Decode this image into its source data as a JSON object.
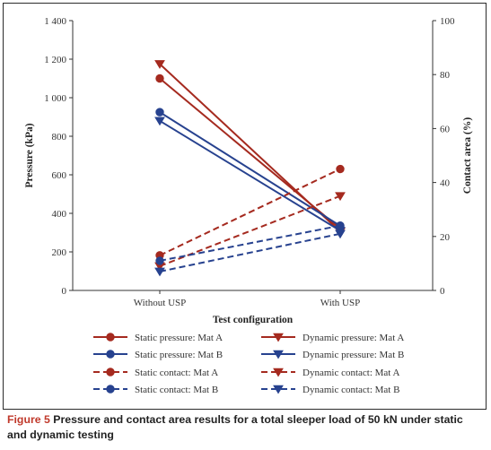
{
  "caption": {
    "label": "Figure 5",
    "text": "Pressure and contact area results for a total sleeper load of 50 kN under static and dynamic testing"
  },
  "chart_data": {
    "type": "line",
    "categories": [
      "Without USP",
      "With USP"
    ],
    "xlabel": "Test configuration",
    "ylabel": "Pressure (kPa)",
    "ylabel_right": "Contact area (%)",
    "ylim": [
      0,
      1400
    ],
    "ylim_right": [
      0,
      100
    ],
    "yticks": [
      "0",
      "200",
      "400",
      "600",
      "800",
      "1 000",
      "1 200",
      "1 400"
    ],
    "yticks_right": [
      "0",
      "20",
      "40",
      "60",
      "80",
      "100"
    ],
    "grid": false,
    "legend_position": "bottom",
    "colors": {
      "mat_a": "#a52a1f",
      "mat_b": "#27428f"
    },
    "series": [
      {
        "name": "Static pressure: Mat A",
        "axis": "left",
        "marker": "circle",
        "dash": "solid",
        "color": "#a52a1f",
        "values": [
          1100,
          320
        ]
      },
      {
        "name": "Dynamic pressure: Mat A",
        "axis": "left",
        "marker": "triangle-down",
        "dash": "solid",
        "color": "#a52a1f",
        "values": [
          1175,
          305
        ]
      },
      {
        "name": "Static pressure: Mat B",
        "axis": "left",
        "marker": "circle",
        "dash": "solid",
        "color": "#27428f",
        "values": [
          925,
          335
        ]
      },
      {
        "name": "Dynamic pressure: Mat B",
        "axis": "left",
        "marker": "triangle-down",
        "dash": "solid",
        "color": "#27428f",
        "values": [
          880,
          310
        ]
      },
      {
        "name": "Static contact: Mat A",
        "axis": "right",
        "marker": "circle",
        "dash": "dashed",
        "color": "#a52a1f",
        "values": [
          13,
          45
        ]
      },
      {
        "name": "Dynamic contact: Mat A",
        "axis": "right",
        "marker": "triangle-down",
        "dash": "dashed",
        "color": "#a52a1f",
        "values": [
          9,
          35
        ]
      },
      {
        "name": "Static contact: Mat B",
        "axis": "right",
        "marker": "circle",
        "dash": "dashed",
        "color": "#27428f",
        "values": [
          11,
          24
        ]
      },
      {
        "name": "Dynamic contact: Mat B",
        "axis": "right",
        "marker": "triangle-down",
        "dash": "dashed",
        "color": "#27428f",
        "values": [
          7,
          21
        ]
      }
    ]
  }
}
